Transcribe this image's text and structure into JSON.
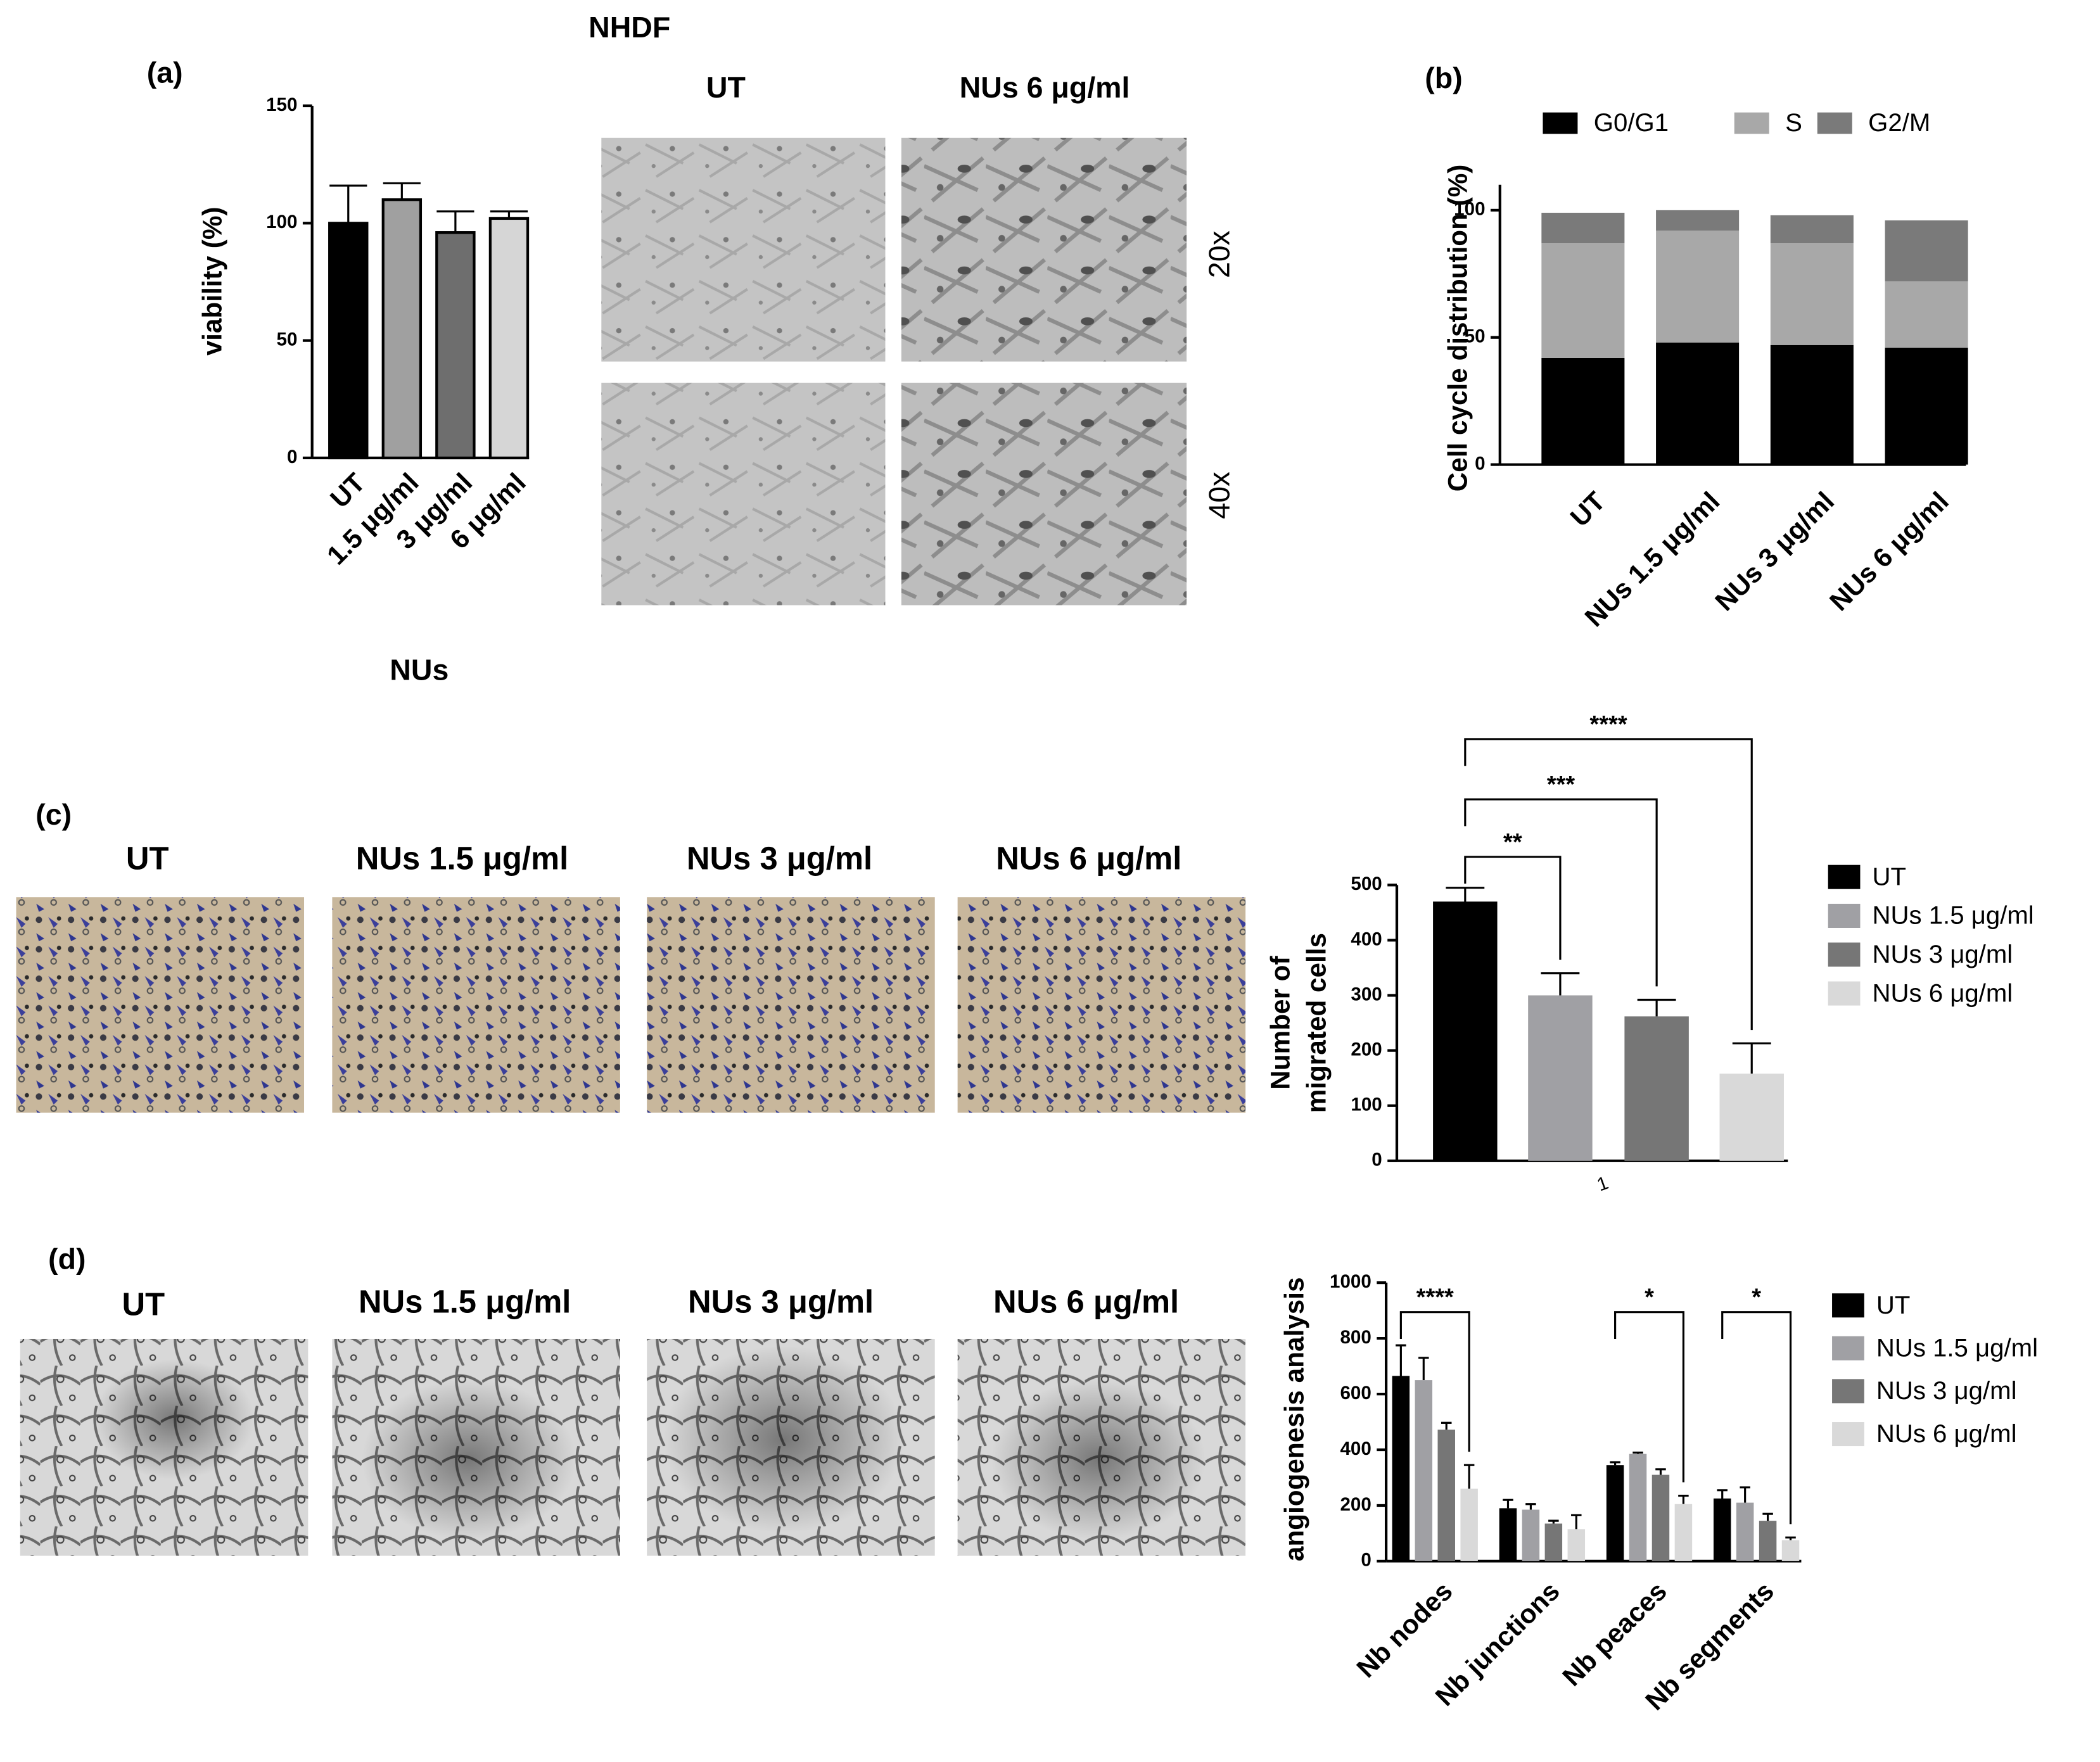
{
  "figure_title": "NHDF",
  "images": {
    "a": {
      "columns": [
        "UT",
        "NUs 6 μg/ml"
      ],
      "rows": [
        "20x",
        "40x"
      ]
    },
    "c": [
      "UT",
      "NUs 1.5 μg/ml",
      "NUs 3 μg/ml",
      "NUs 6 μg/ml"
    ],
    "d": [
      "UT",
      "NUs 1.5 μg/ml",
      "NUs 3 μg/ml",
      "NUs 6 μg/ml"
    ]
  },
  "chart_data": [
    {
      "type": "bar",
      "panel_label": "(a)",
      "ylabel": "viability (%)",
      "xlabel": "NUs",
      "categories": [
        "UT",
        "1.5 μg/ml",
        "3 μg/ml",
        "6 μg/ml"
      ],
      "values": [
        100,
        110,
        96,
        102
      ],
      "errors": [
        16,
        7,
        9,
        3
      ],
      "colors": [
        "#000000",
        "#a0a0a0",
        "#6e6e6e",
        "#d6d6d6"
      ],
      "ylim": [
        0,
        150
      ],
      "yticks": [
        0,
        50,
        100,
        150
      ]
    },
    {
      "type": "stacked_bar",
      "panel_label": "(b)",
      "ylabel": "Cell cycle distribution (%)",
      "categories": [
        "UT",
        "NUs 1.5 μg/ml",
        "NUs 3 μg/ml",
        "NUs 6 μg/ml"
      ],
      "series": [
        {
          "name": "G0/G1",
          "color": "#000000",
          "values": [
            42,
            48,
            47,
            46
          ]
        },
        {
          "name": "S",
          "color": "#a8a8a8",
          "values": [
            45,
            44,
            40,
            26
          ]
        },
        {
          "name": "G2/M",
          "color": "#7a7a7a",
          "values": [
            12,
            8,
            11,
            24
          ]
        }
      ],
      "ylim": [
        0,
        110
      ],
      "yticks": [
        0,
        50,
        100
      ],
      "legend": "top"
    },
    {
      "type": "grouped_bar",
      "panel_label": "(c)",
      "ylabel": [
        "Number of",
        "migrated cells"
      ],
      "categories": [
        "1"
      ],
      "series": [
        {
          "name": "UT",
          "color": "#000000",
          "values": [
            470
          ],
          "errors": [
            25
          ]
        },
        {
          "name": "NUs 1.5 μg/ml",
          "color": "#a0a0a4",
          "values": [
            300
          ],
          "errors": [
            40
          ]
        },
        {
          "name": "NUs 3 μg/ml",
          "color": "#767676",
          "values": [
            262
          ],
          "errors": [
            30
          ]
        },
        {
          "name": "NUs 6 μg/ml",
          "color": "#d9d9d9",
          "values": [
            158
          ],
          "errors": [
            55
          ]
        }
      ],
      "ylim": [
        0,
        500
      ],
      "yticks": [
        0,
        100,
        200,
        300,
        400,
        500
      ],
      "annotations": [
        "**",
        "***",
        "****"
      ],
      "legend": "right"
    },
    {
      "type": "grouped_bar",
      "panel_label": "(d)",
      "ylabel": "angiogenesis analysis",
      "categories": [
        "Nb nodes",
        "Nb junctions",
        "Nb peaces",
        "Nb segments"
      ],
      "series": [
        {
          "name": "UT",
          "color": "#000000",
          "values": [
            665,
            190,
            345,
            225
          ],
          "errors": [
            110,
            30,
            10,
            30
          ]
        },
        {
          "name": "NUs 1.5 μg/ml",
          "color": "#a0a0a4",
          "values": [
            650,
            185,
            385,
            210
          ],
          "errors": [
            80,
            20,
            5,
            55
          ]
        },
        {
          "name": "NUs 3 μg/ml",
          "color": "#767676",
          "values": [
            472,
            135,
            310,
            145
          ],
          "errors": [
            25,
            10,
            20,
            25
          ]
        },
        {
          "name": "NUs 6 μg/ml",
          "color": "#d9d9d9",
          "values": [
            260,
            115,
            205,
            75
          ],
          "errors": [
            85,
            50,
            30,
            10
          ]
        }
      ],
      "ylim": [
        0,
        1000
      ],
      "yticks": [
        0,
        200,
        400,
        600,
        800,
        1000
      ],
      "annotations": [
        "****",
        "*",
        "*"
      ],
      "legend": "right"
    }
  ]
}
